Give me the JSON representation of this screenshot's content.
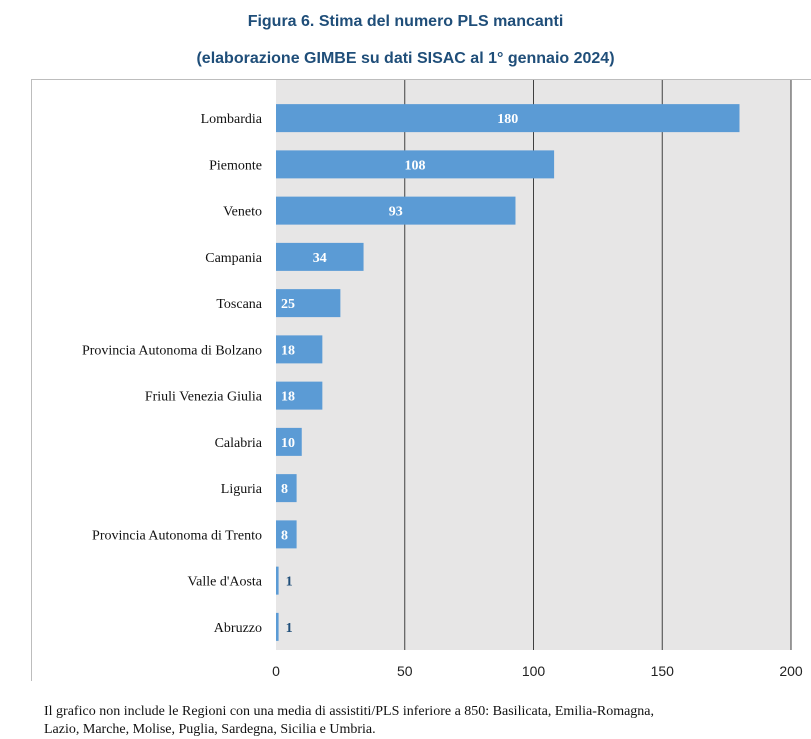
{
  "title_line1": "Figura 6. Stima del numero PLS mancanti",
  "title_line2": "(elaborazione GIMBE su dati SISAC al 1° gennaio 2024)",
  "note_line1": "Il grafico non include le Regioni con una media di assistiti/PLS inferiore a 850: Basilicata, Emilia-Romagna,",
  "note_line2": "Lazio, Marche, Molise, Puglia, Sardegna, Sicilia e Umbria.",
  "colors": {
    "bar": "#5b9bd5",
    "plot_background": "#e7e6e6",
    "gridline": "#404040",
    "label_inside": "#ffffff",
    "label_outside": "#1f4e79",
    "title": "#1f4e79"
  },
  "chart_data": {
    "type": "bar",
    "orientation": "horizontal",
    "categories": [
      "Lombardia",
      "Piemonte",
      "Veneto",
      "Campania",
      "Toscana",
      "Provincia Autonoma di Bolzano",
      "Friuli Venezia Giulia",
      "Calabria",
      "Liguria",
      "Provincia Autonoma di Trento",
      "Valle d'Aosta",
      "Abruzzo"
    ],
    "values": [
      180,
      108,
      93,
      34,
      25,
      18,
      18,
      10,
      8,
      8,
      1,
      1
    ],
    "xlim": [
      0,
      200
    ],
    "xticks": [
      0,
      50,
      100,
      150,
      200
    ],
    "grid": "vertical",
    "legend": "none"
  }
}
